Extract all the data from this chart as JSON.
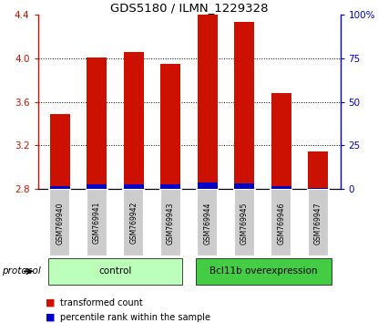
{
  "title": "GDS5180 / ILMN_1229328",
  "samples": [
    "GSM769940",
    "GSM769941",
    "GSM769942",
    "GSM769943",
    "GSM769944",
    "GSM769945",
    "GSM769946",
    "GSM769947"
  ],
  "red_values": [
    3.49,
    4.01,
    4.06,
    3.95,
    4.4,
    4.33,
    3.68,
    3.14
  ],
  "blue_values": [
    0.03,
    0.04,
    0.04,
    0.04,
    0.06,
    0.05,
    0.03,
    0.01
  ],
  "bar_bottom": 2.8,
  "ylim_left": [
    2.8,
    4.4
  ],
  "ylim_right": [
    0,
    100
  ],
  "yticks_left": [
    2.8,
    3.2,
    3.6,
    4.0,
    4.4
  ],
  "yticks_right": [
    0,
    25,
    50,
    75,
    100
  ],
  "ytick_labels_right": [
    "0",
    "25",
    "50",
    "75",
    "100%"
  ],
  "red_color": "#cc1100",
  "blue_color": "#0000cc",
  "control_color": "#bbffbb",
  "overexp_color": "#44cc44",
  "group_label_light": "control",
  "group_label_dark": "Bcl11b overexpression",
  "control_count": 4,
  "protocol_label": "protocol",
  "legend_red": "transformed count",
  "legend_blue": "percentile rank within the sample",
  "bar_width": 0.55,
  "bg_color": "#ffffff",
  "sample_box_color": "#cccccc",
  "grid_color": "black",
  "grid_linestyle": ":"
}
